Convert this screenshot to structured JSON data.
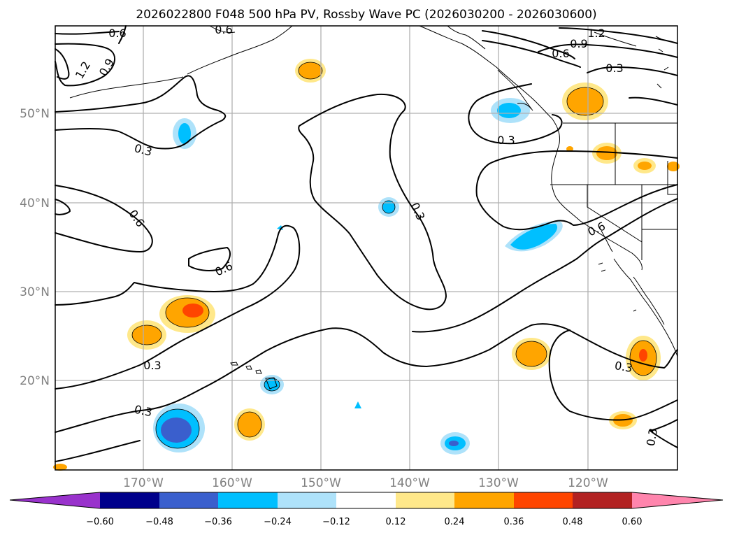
{
  "title": "2026022800 F048 500 hPa PV, Rossby Wave PC (2026030200 - 2026030600)",
  "latitude_labels": [
    "50°N",
    "40°N",
    "30°N",
    "20°N"
  ],
  "longitude_labels": [
    "170°W",
    "160°W",
    "150°W",
    "140°W",
    "130°W",
    "120°W"
  ],
  "contour_labels": {
    "c1": "0.6",
    "c2": "0.6",
    "c3": "1.2",
    "c4": "0.9",
    "c5": "1.2",
    "c6": "0.9",
    "c7": "0.6",
    "c8": "0.3",
    "c9": "0.3",
    "c10": "0.3",
    "c11": "0.6",
    "c12": "0.3",
    "c13": "0.6",
    "c14": "0.6",
    "c15": "0.3",
    "c16": "0.3",
    "c17": "0.3",
    "c18": "0.3"
  },
  "colorbar": {
    "ticks": [
      "−0.60",
      "−0.48",
      "−0.36",
      "−0.24",
      "−0.12",
      "0.12",
      "0.24",
      "0.36",
      "0.48",
      "0.60"
    ],
    "colors": [
      "#9932cc",
      "#00008b",
      "#3a5fcd",
      "#00bfff",
      "#aee2fa",
      "#ffffff",
      "#ffe88a",
      "#ffa500",
      "#ff4500",
      "#b22222",
      "#ff85ad"
    ]
  },
  "fill_colors": {
    "pale_yellow": "#ffe88a",
    "orange": "#ffa500",
    "red_orange": "#ff4500",
    "light_blue": "#aee2fa",
    "cyan": "#00bfff",
    "royal_blue": "#3a5fcd"
  }
}
